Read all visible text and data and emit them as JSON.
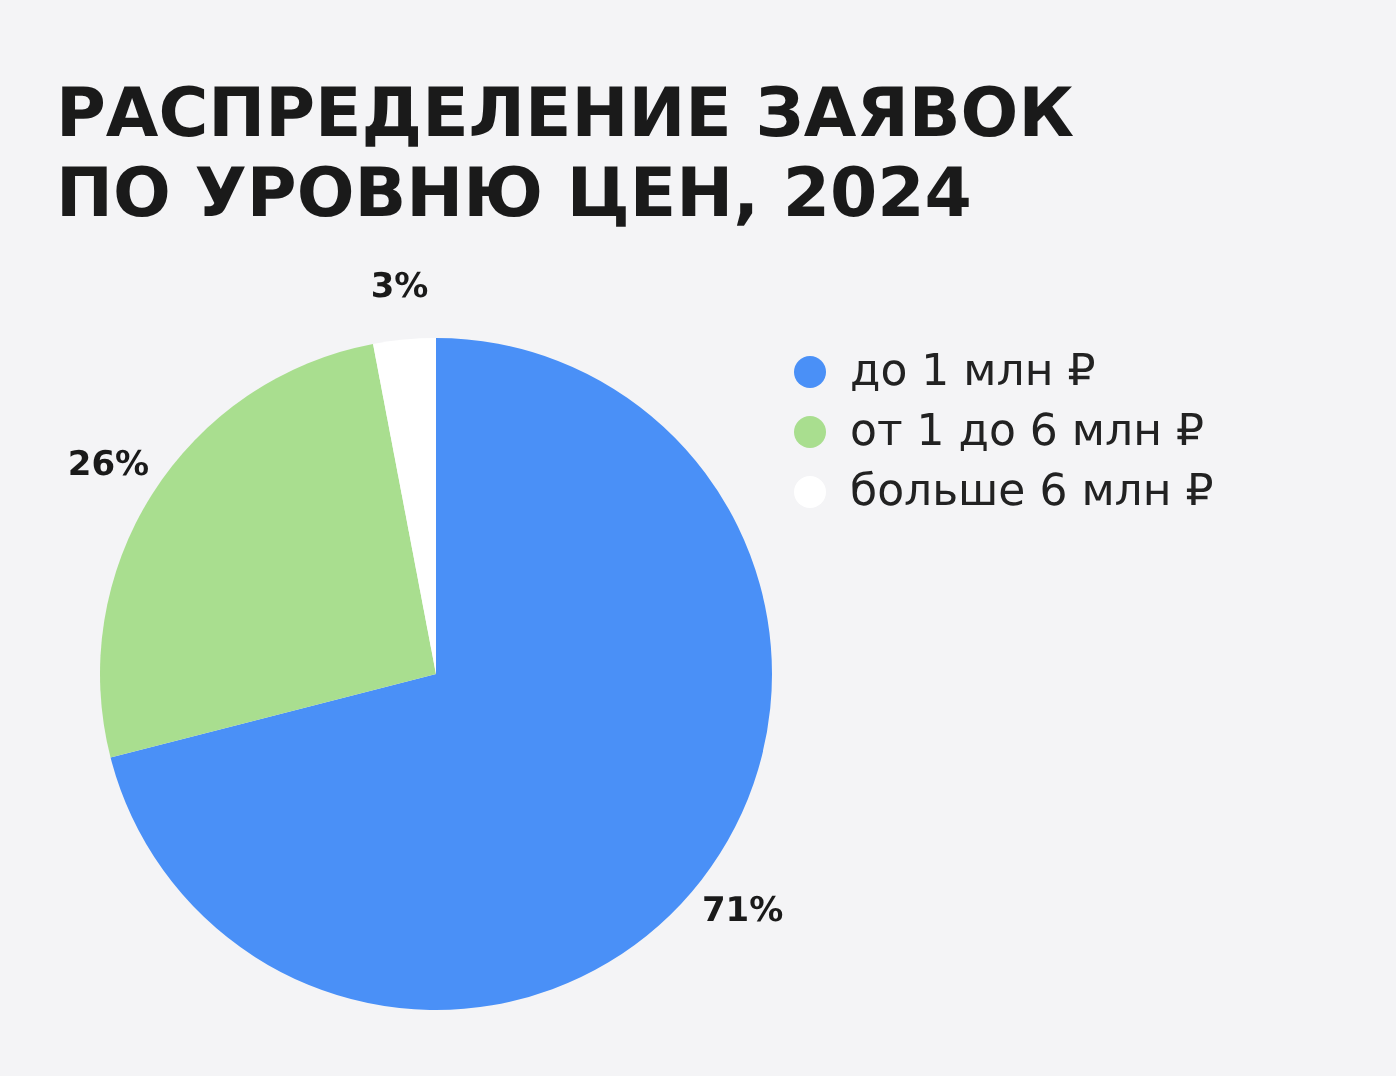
{
  "chart_data": {
    "type": "pie",
    "title": "РАСПРЕДЕЛЕНИЕ ЗАЯВОК ПО УРОВНЮ ЦЕН, 2024",
    "categories": [
      "до 1 млн ₽",
      "от 1 до 6 млн ₽",
      "больше 6 млн ₽"
    ],
    "values": [
      71,
      26,
      3
    ],
    "colors": [
      "#4a90f7",
      "#a9de8f",
      "#ffffff"
    ],
    "value_labels": [
      "71%",
      "26%",
      "3%"
    ],
    "legend": "right"
  }
}
